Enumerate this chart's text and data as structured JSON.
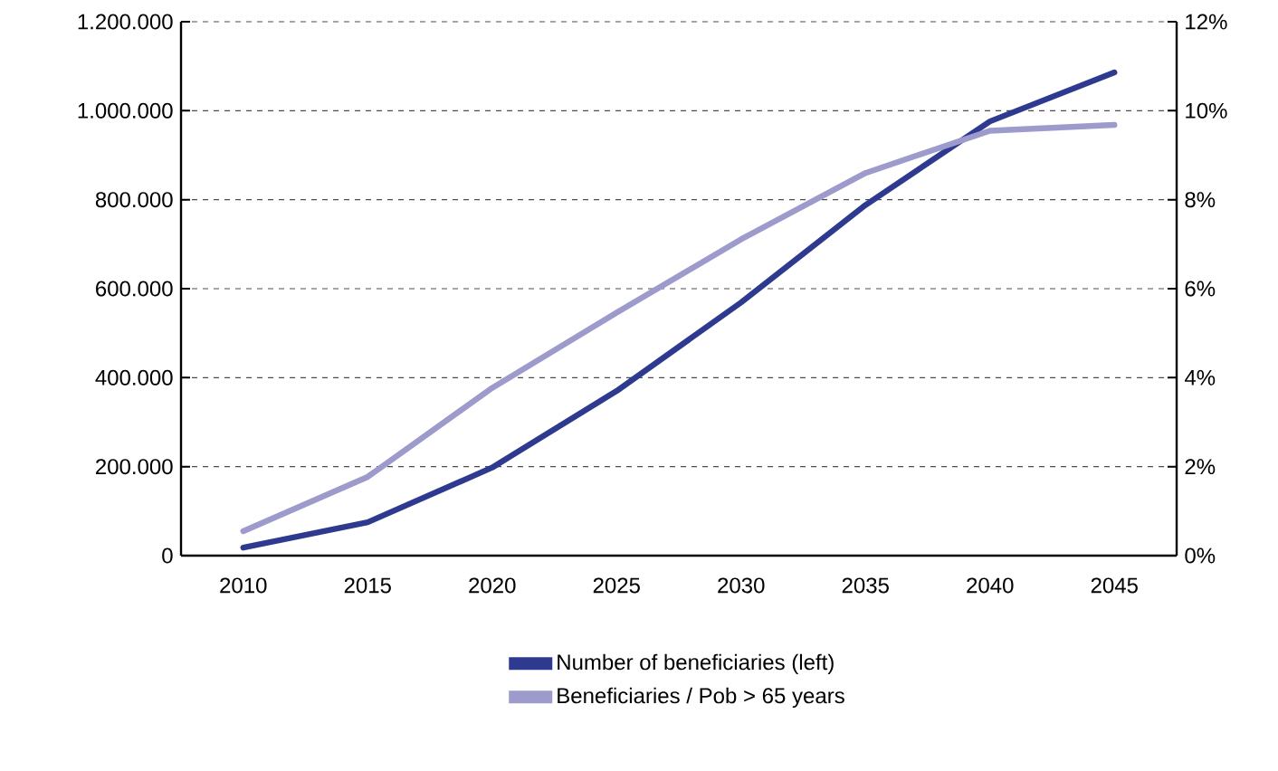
{
  "chart_data": {
    "type": "line",
    "categories": [
      "2010",
      "2015",
      "2020",
      "2025",
      "2030",
      "2035",
      "2040",
      "2045"
    ],
    "series": [
      {
        "name": "Number of beneficiaries (left)",
        "color": "#2e3a8f",
        "values": [
          18000,
          75000,
          198000,
          370000,
          569000,
          788000,
          976000,
          1086000
        ]
      },
      {
        "name": "Beneficiaries / Pob > 65 years",
        "color": "#9d9bcb",
        "axis": "y2",
        "values": [
          0.55,
          1.77,
          3.77,
          5.46,
          7.11,
          8.6,
          9.55,
          9.68
        ]
      }
    ],
    "ylim": [
      0,
      1200000
    ],
    "yticks": [
      {
        "value": 0,
        "label": "0"
      },
      {
        "value": 200000,
        "label": "200.000"
      },
      {
        "value": 400000,
        "label": "400.000"
      },
      {
        "value": 600000,
        "label": "600.000"
      },
      {
        "value": 800000,
        "label": "800.000"
      },
      {
        "value": 1000000,
        "label": "1.000.000"
      },
      {
        "value": 1200000,
        "label": "1.200.000"
      }
    ],
    "y2lim": [
      0,
      12
    ],
    "y2ticks": [
      {
        "value": 0,
        "label": "0%"
      },
      {
        "value": 2,
        "label": "2%"
      },
      {
        "value": 4,
        "label": "4%"
      },
      {
        "value": 6,
        "label": "6%"
      },
      {
        "value": 8,
        "label": "8%"
      },
      {
        "value": 10,
        "label": "10%"
      },
      {
        "value": 12,
        "label": "12%"
      }
    ],
    "grid": "y",
    "legend": "bottom",
    "marker": "none",
    "line_style": "solid"
  }
}
